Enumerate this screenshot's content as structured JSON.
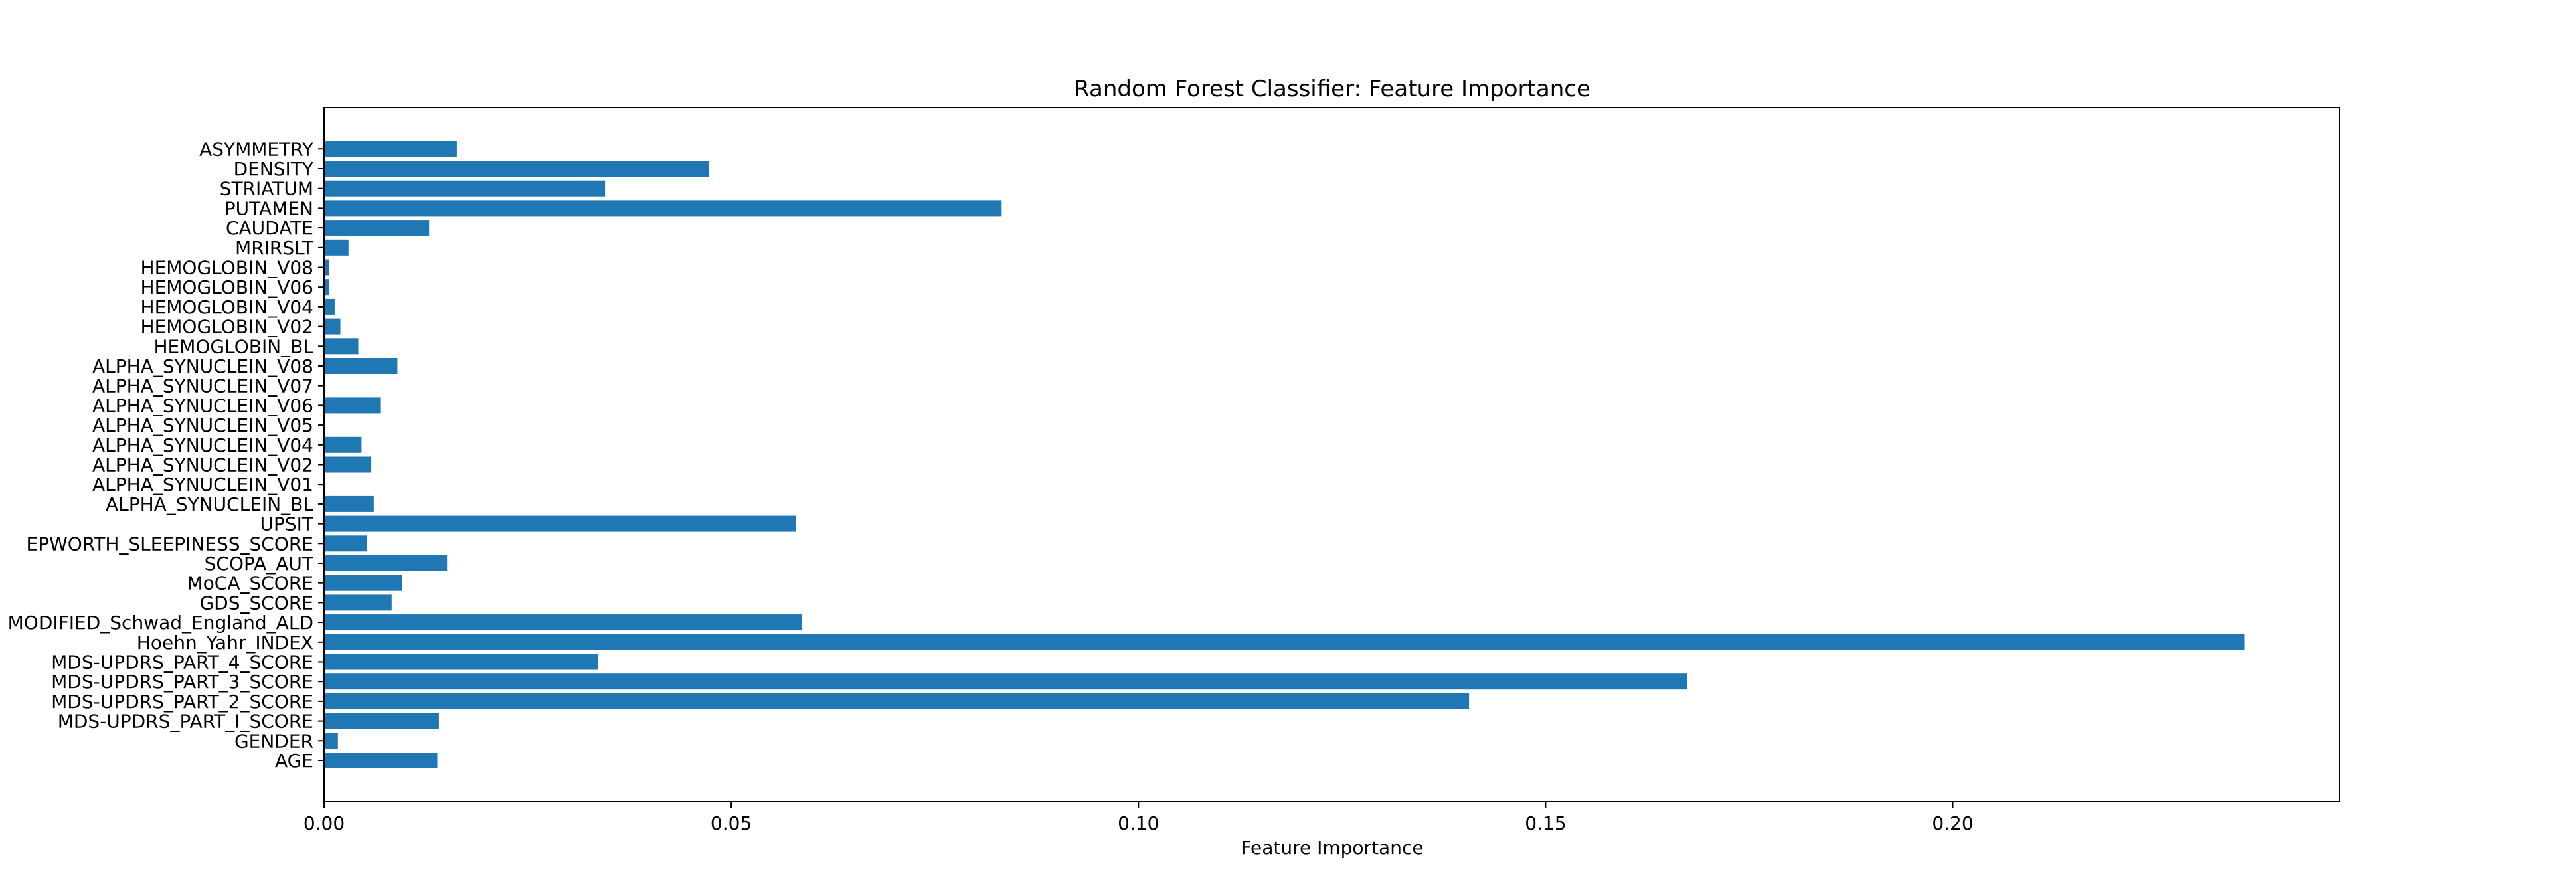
{
  "chart_data": {
    "type": "bar",
    "orientation": "horizontal",
    "title": "Random Forest Classifier: Feature Importance",
    "xlabel": "Feature Importance",
    "ylabel": "",
    "xlim": [
      0,
      0.2475
    ],
    "xticks": [
      0.0,
      0.05,
      0.1,
      0.15,
      0.2
    ],
    "xtick_labels": [
      "0.00",
      "0.05",
      "0.10",
      "0.15",
      "0.20"
    ],
    "grid": false,
    "legend": "none",
    "bar_color": "#1f77b4",
    "categories": [
      "AGE",
      "GENDER",
      "MDS-UPDRS_PART_I_SCORE",
      "MDS-UPDRS_PART_2_SCORE",
      "MDS-UPDRS_PART_3_SCORE",
      "MDS-UPDRS_PART_4_SCORE",
      "Hoehn_Yahr_INDEX",
      "MODIFIED_Schwad_England_ALD",
      "GDS_SCORE",
      "MoCA_SCORE",
      "SCOPA_AUT",
      "EPWORTH_SLEEPINESS_SCORE",
      "UPSIT",
      "ALPHA_SYNUCLEIN_BL",
      "ALPHA_SYNUCLEIN_V01",
      "ALPHA_SYNUCLEIN_V02",
      "ALPHA_SYNUCLEIN_V04",
      "ALPHA_SYNUCLEIN_V05",
      "ALPHA_SYNUCLEIN_V06",
      "ALPHA_SYNUCLEIN_V07",
      "ALPHA_SYNUCLEIN_V08",
      "HEMOGLOBIN_BL",
      "HEMOGLOBIN_V02",
      "HEMOGLOBIN_V04",
      "HEMOGLOBIN_V06",
      "HEMOGLOBIN_V08",
      "MRIRSLT",
      "CAUDATE",
      "PUTAMEN",
      "STRIATUM",
      "DENSITY",
      "ASYMMETRY"
    ],
    "values": [
      0.0139,
      0.0017,
      0.0141,
      0.1406,
      0.1674,
      0.0336,
      0.2358,
      0.0587,
      0.0083,
      0.0096,
      0.0151,
      0.0053,
      0.0579,
      0.0061,
      0.0,
      0.0058,
      0.0046,
      0.0,
      0.0069,
      0.0,
      0.009,
      0.0042,
      0.002,
      0.0013,
      0.0006,
      0.0006,
      0.003,
      0.0129,
      0.0832,
      0.0345,
      0.0473,
      0.0163
    ]
  }
}
